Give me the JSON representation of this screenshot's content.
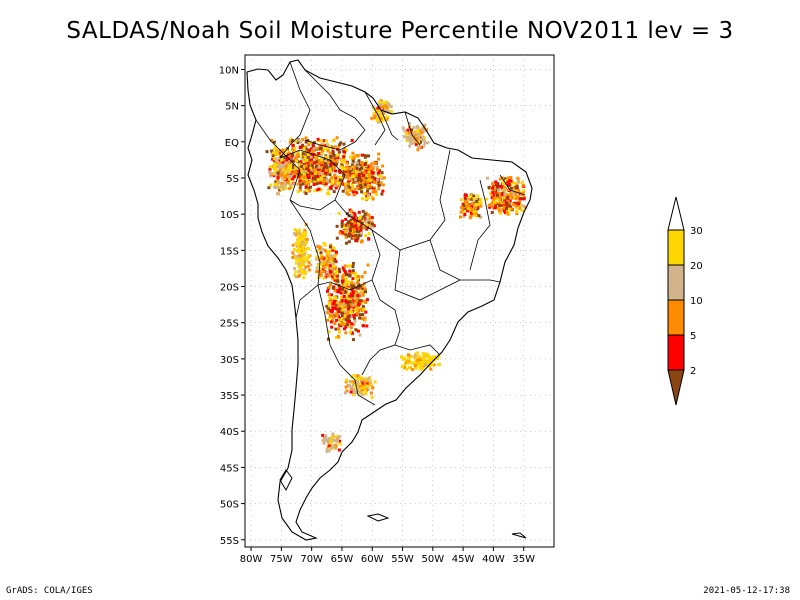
{
  "title": "SALDAS/Noah Soil Moisture Percentile NOV2011 lev = 3",
  "footer_left": "GrADS: COLA/IGES",
  "footer_right": "2021-05-12-17:38",
  "map": {
    "lon_range": [
      -81,
      -30
    ],
    "lat_range": [
      -56,
      12
    ],
    "lat_labels": [
      "10N",
      "5N",
      "EQ",
      "5S",
      "10S",
      "15S",
      "20S",
      "25S",
      "30S",
      "35S",
      "40S",
      "45S",
      "50S",
      "55S"
    ],
    "lat_values": [
      10,
      5,
      0,
      -5,
      -10,
      -15,
      -20,
      -25,
      -30,
      -35,
      -40,
      -45,
      -50,
      -55
    ],
    "lon_labels": [
      "80W",
      "75W",
      "70W",
      "65W",
      "60W",
      "55W",
      "50W",
      "45W",
      "40W",
      "35W"
    ],
    "lon_values": [
      -80,
      -75,
      -70,
      -65,
      -60,
      -55,
      -50,
      -45,
      -40,
      -35
    ],
    "grid": true
  },
  "legend": {
    "labels": [
      "2",
      "5",
      "10",
      "20",
      "30"
    ],
    "colors": {
      "below_2": "#8b4513",
      "2_5": "#ff0000",
      "5_10": "#ff8c00",
      "10_20": "#d2b48c",
      "20_30": "#ffd700",
      "above_30": "#ffffff"
    }
  },
  "colors": {
    "grid": "#aaaaaa",
    "coast": "#000000"
  }
}
